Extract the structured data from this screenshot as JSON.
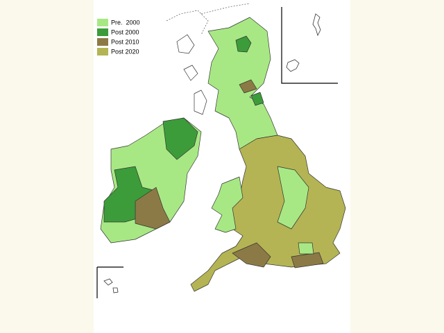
{
  "legend": {
    "items": [
      {
        "label": "Pre.  2000",
        "color": "#a8e884"
      },
      {
        "label": "Post 2000",
        "color": "#3c9c3a"
      },
      {
        "label": "Post 2010",
        "color": "#8c7a46"
      },
      {
        "label": "Post 2020",
        "color": "#b4b454"
      }
    ]
  }
}
